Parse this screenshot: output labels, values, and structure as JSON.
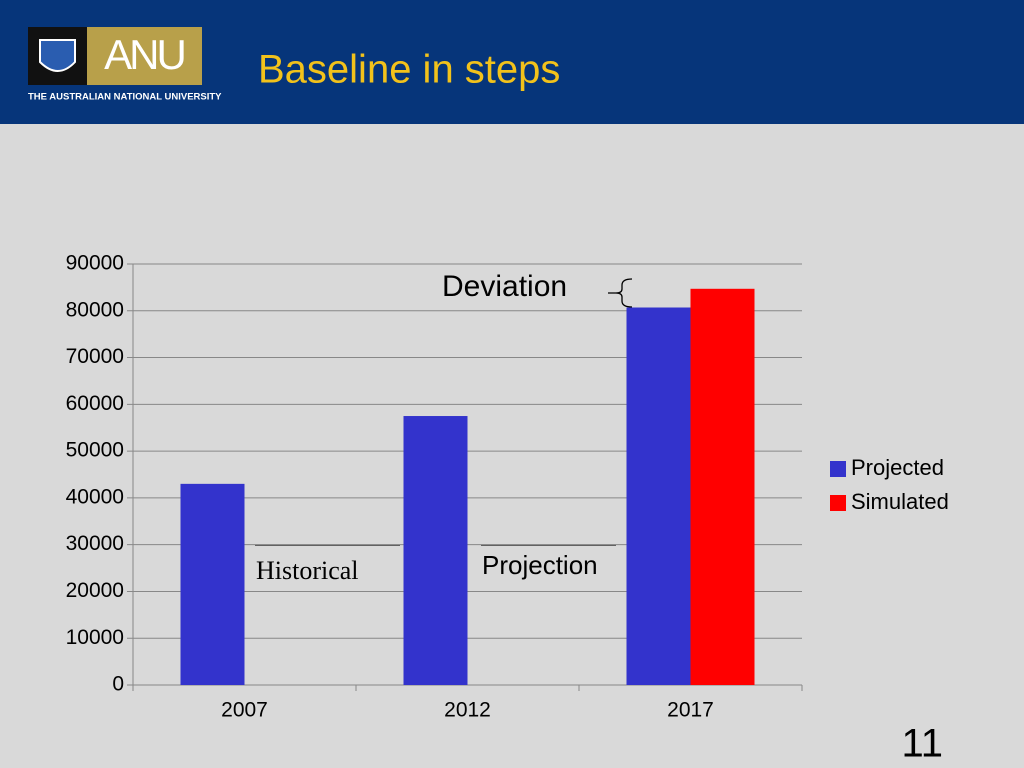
{
  "header": {
    "logo": "ANU",
    "university": "THE AUSTRALIAN NATIONAL UNIVERSITY"
  },
  "chart_data": {
    "type": "bar",
    "title": "Baseline in steps",
    "categories": [
      "2007",
      "2012",
      "2017"
    ],
    "series": [
      {
        "name": "Projected",
        "color": "#3333cc",
        "values": [
          43000,
          57500,
          80700
        ]
      },
      {
        "name": "Simulated",
        "color": "#ff0000",
        "values": [
          null,
          null,
          84700
        ]
      }
    ],
    "ylim": [
      0,
      90000
    ],
    "yticks": [
      0,
      10000,
      20000,
      30000,
      40000,
      50000,
      60000,
      70000,
      80000,
      90000
    ],
    "grid": true,
    "legend": "right",
    "annotations": {
      "deviation": "Deviation",
      "historical": "Historical",
      "projection": "Projection"
    }
  },
  "page_number": "11"
}
